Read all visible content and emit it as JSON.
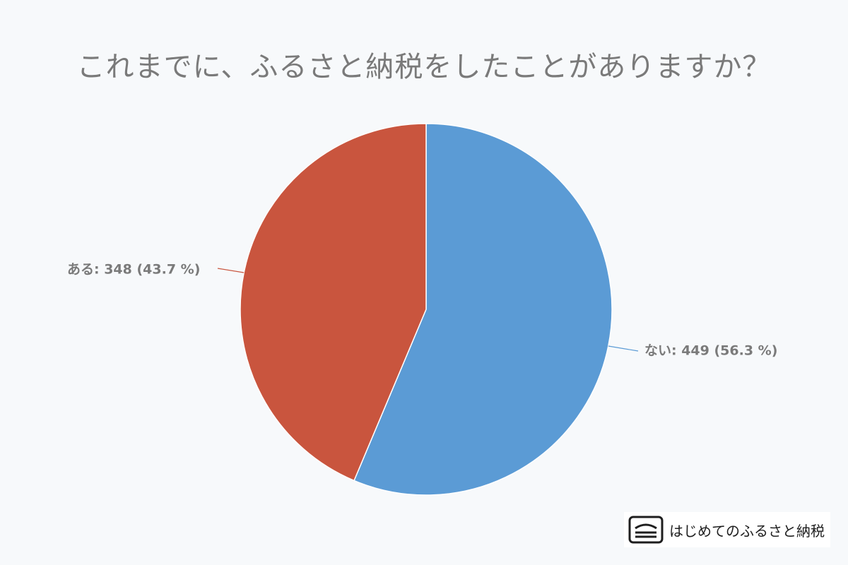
{
  "chart_data": {
    "type": "pie",
    "title": "これまでに、ふるさと納税をしたことがありますか？",
    "slices": [
      {
        "label": "ない",
        "value": 449,
        "percent": "56.3 %",
        "color": "#5b9bd5",
        "display": "ない: 449 (56.3 %)"
      },
      {
        "label": "ある",
        "value": 348,
        "percent": "43.7 %",
        "color": "#c9553e",
        "display": "ある: 348 (43.7 %)"
      }
    ],
    "start_angle": "top",
    "direction": "clockwise",
    "legend": "none"
  },
  "brand": {
    "text": "はじめてのふるさと納税",
    "logo_icon": "hometown-logo-icon"
  }
}
